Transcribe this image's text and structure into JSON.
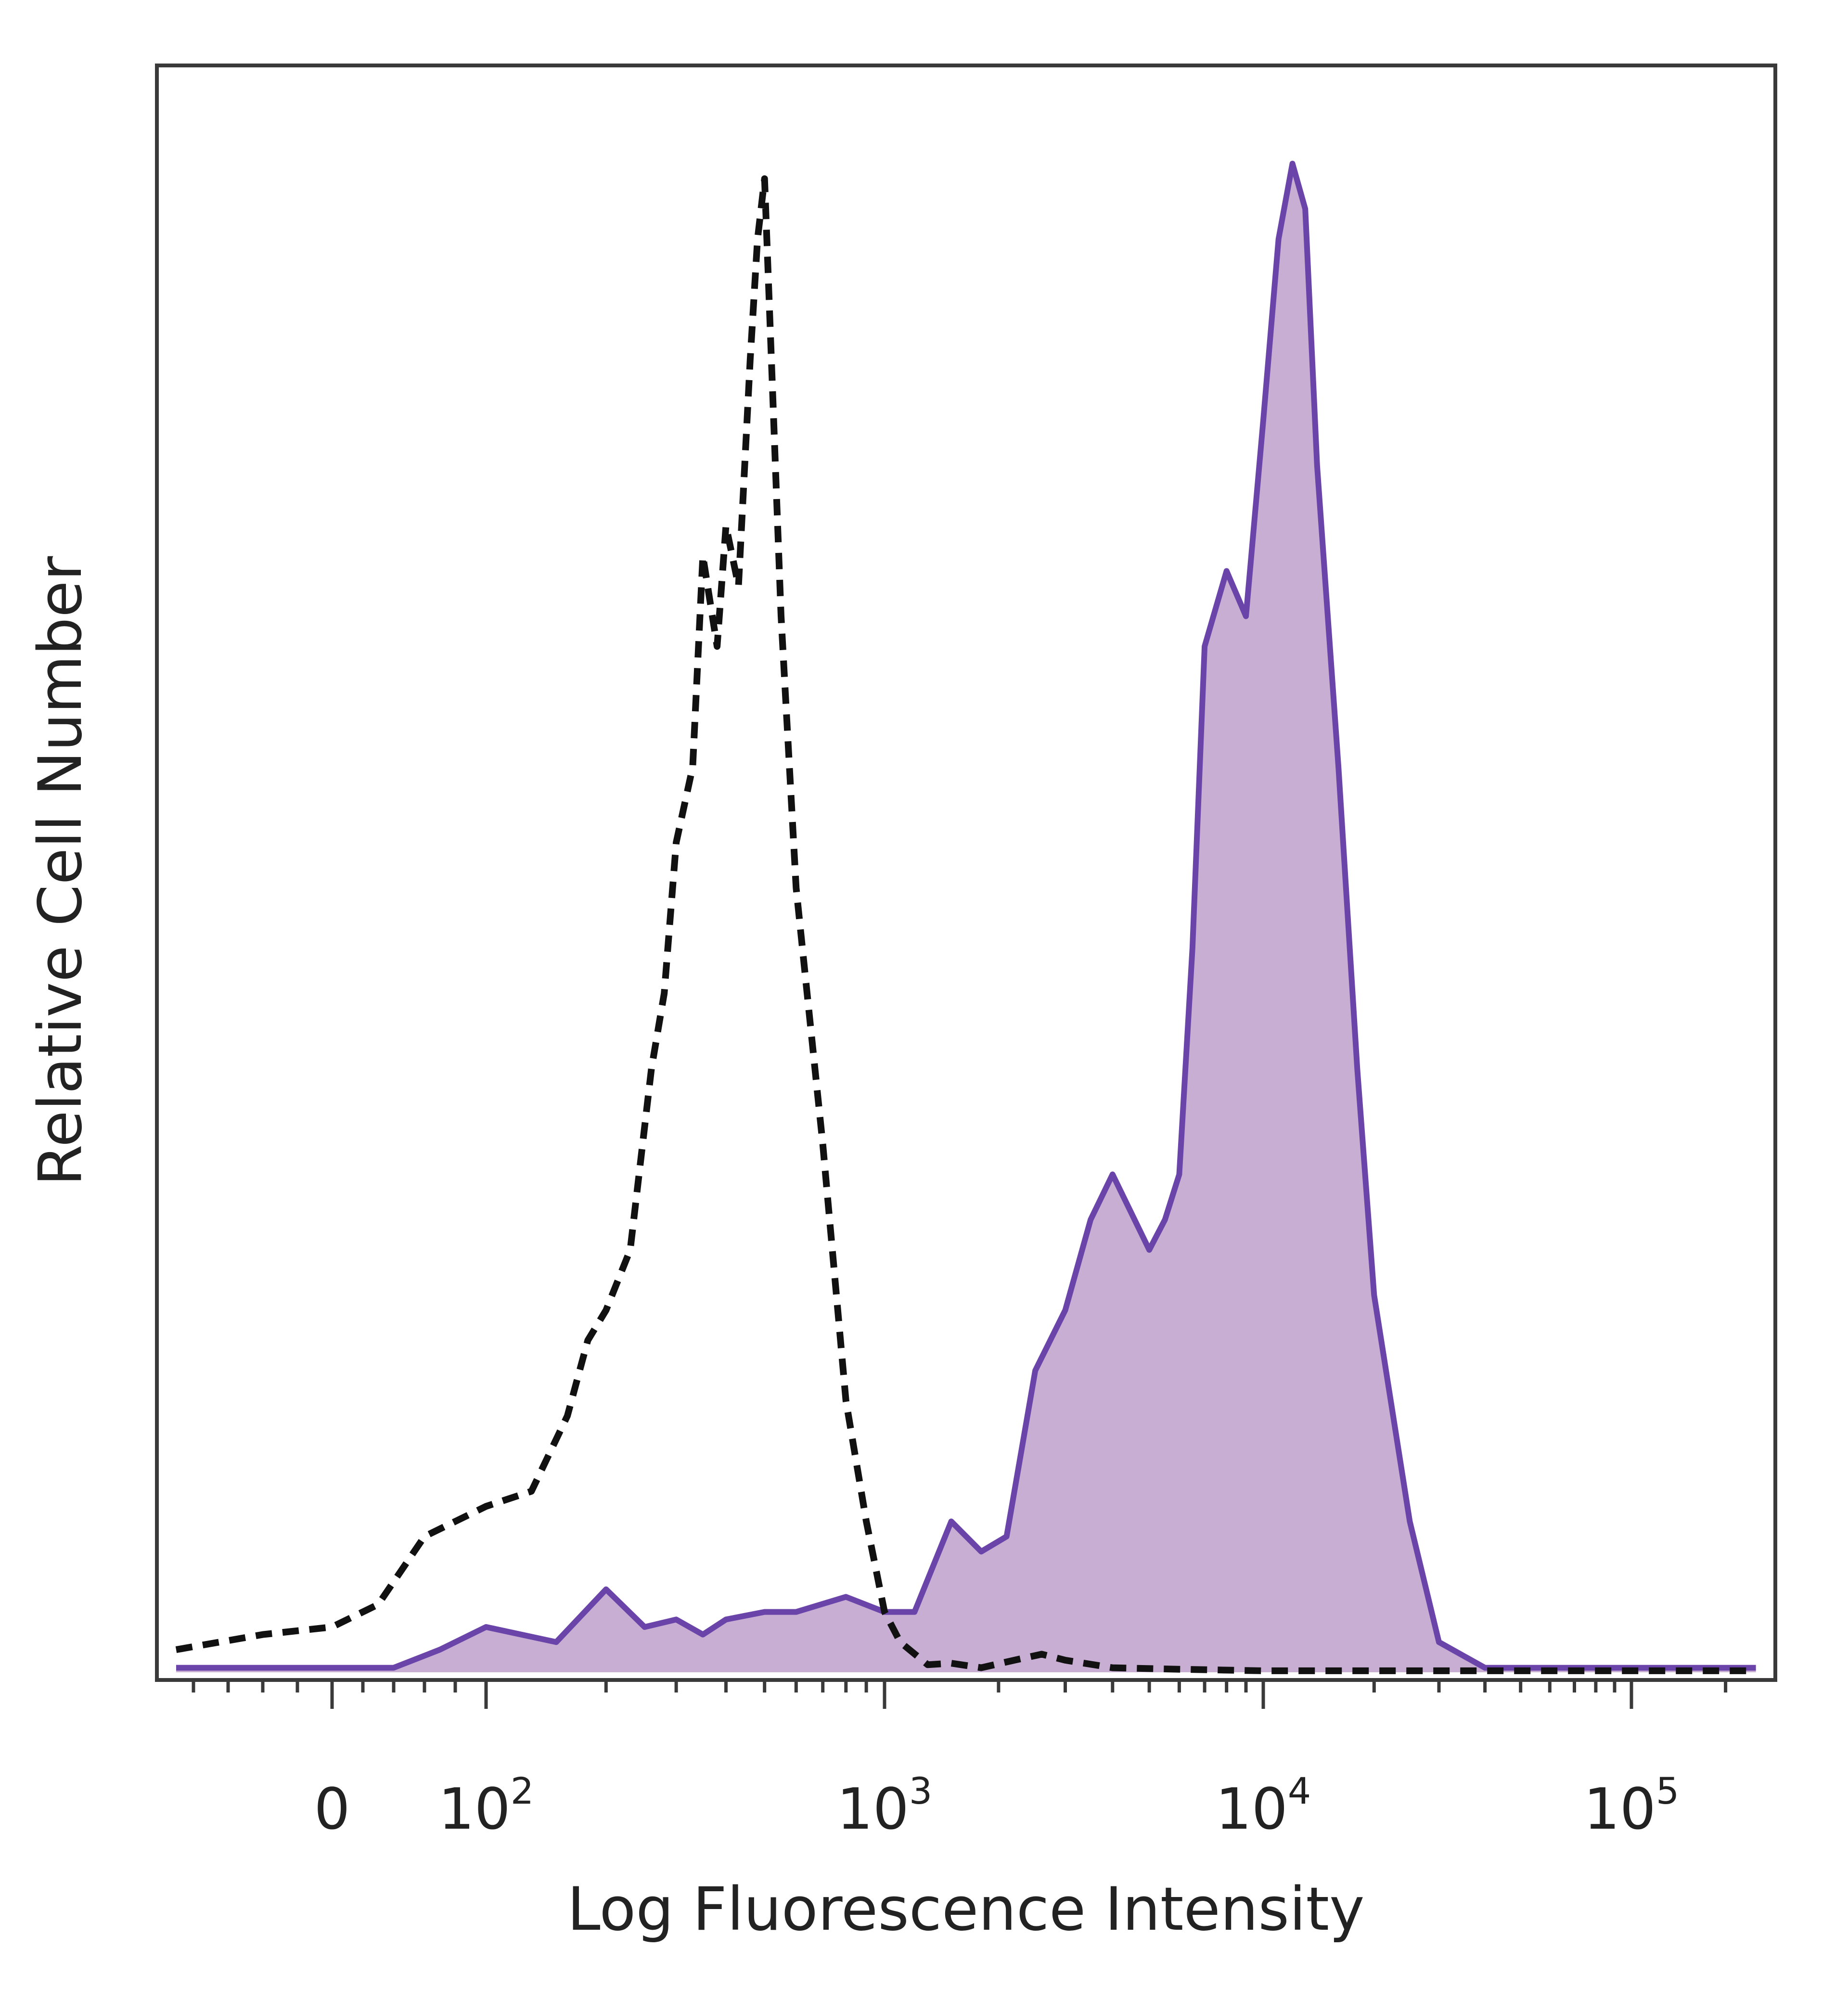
{
  "chart_data": {
    "type": "area",
    "xlabel": "Log Fluorescence Intensity",
    "ylabel": "Relative Cell Number",
    "x_scale": "biexponential (log above 10^2, linear near 0)",
    "x_ticks": [
      {
        "base": "0",
        "exp": ""
      },
      {
        "base": "10",
        "exp": "2"
      },
      {
        "base": "10",
        "exp": "3"
      },
      {
        "base": "10",
        "exp": "4"
      },
      {
        "base": "10",
        "exp": "5"
      }
    ],
    "ylim": [
      0,
      100
    ],
    "grid": false,
    "legend": "none",
    "series": [
      {
        "style": "dashed",
        "color": "#111111",
        "fill": "none",
        "x": [
          -90,
          -40,
          0,
          30,
          60,
          80,
          100,
          130,
          160,
          180,
          200,
          230,
          260,
          280,
          300,
          330,
          350,
          380,
          400,
          430,
          460,
          480,
          500,
          550,
          600,
          700,
          800,
          900,
          1000,
          1100,
          1300,
          1500,
          1800,
          2200,
          2600,
          3000,
          4000,
          6000,
          10000,
          20000,
          40000,
          100000,
          250000
        ],
        "y": [
          1.5,
          2.5,
          3,
          4.5,
          9,
          10,
          11,
          12,
          17,
          22,
          24,
          28,
          40,
          45,
          55,
          60,
          74,
          68,
          76,
          72,
          87,
          95,
          99,
          70,
          52,
          35,
          18,
          10,
          4,
          2,
          0.5,
          0.6,
          0.3,
          0.8,
          1.2,
          0.8,
          0.3,
          0.2,
          0.1,
          0.1,
          0.1,
          0.1,
          0.1
        ]
      },
      {
        "style": "solid",
        "color": "#6a44a8",
        "fill": "#c8aed2",
        "x": [
          -90,
          0,
          40,
          70,
          100,
          150,
          200,
          250,
          300,
          350,
          400,
          500,
          600,
          800,
          1000,
          1200,
          1500,
          1800,
          2100,
          2500,
          3000,
          3500,
          4000,
          5000,
          5500,
          6000,
          6500,
          7000,
          8000,
          9000,
          10000,
          11000,
          12000,
          13000,
          14000,
          16000,
          18000,
          20000,
          25000,
          30000,
          40000,
          50000,
          100000,
          250000
        ],
        "y": [
          0.3,
          0.3,
          0.3,
          1.5,
          3,
          2,
          5.5,
          3,
          3.5,
          2.5,
          3.5,
          4,
          4,
          5,
          4,
          4,
          10,
          8,
          9,
          20,
          24,
          30,
          33,
          28,
          30,
          33,
          48,
          68,
          73,
          70,
          83,
          95,
          100,
          97,
          80,
          60,
          40,
          25,
          10,
          2,
          0.3,
          0.3,
          0.3,
          0.3
        ]
      }
    ]
  }
}
